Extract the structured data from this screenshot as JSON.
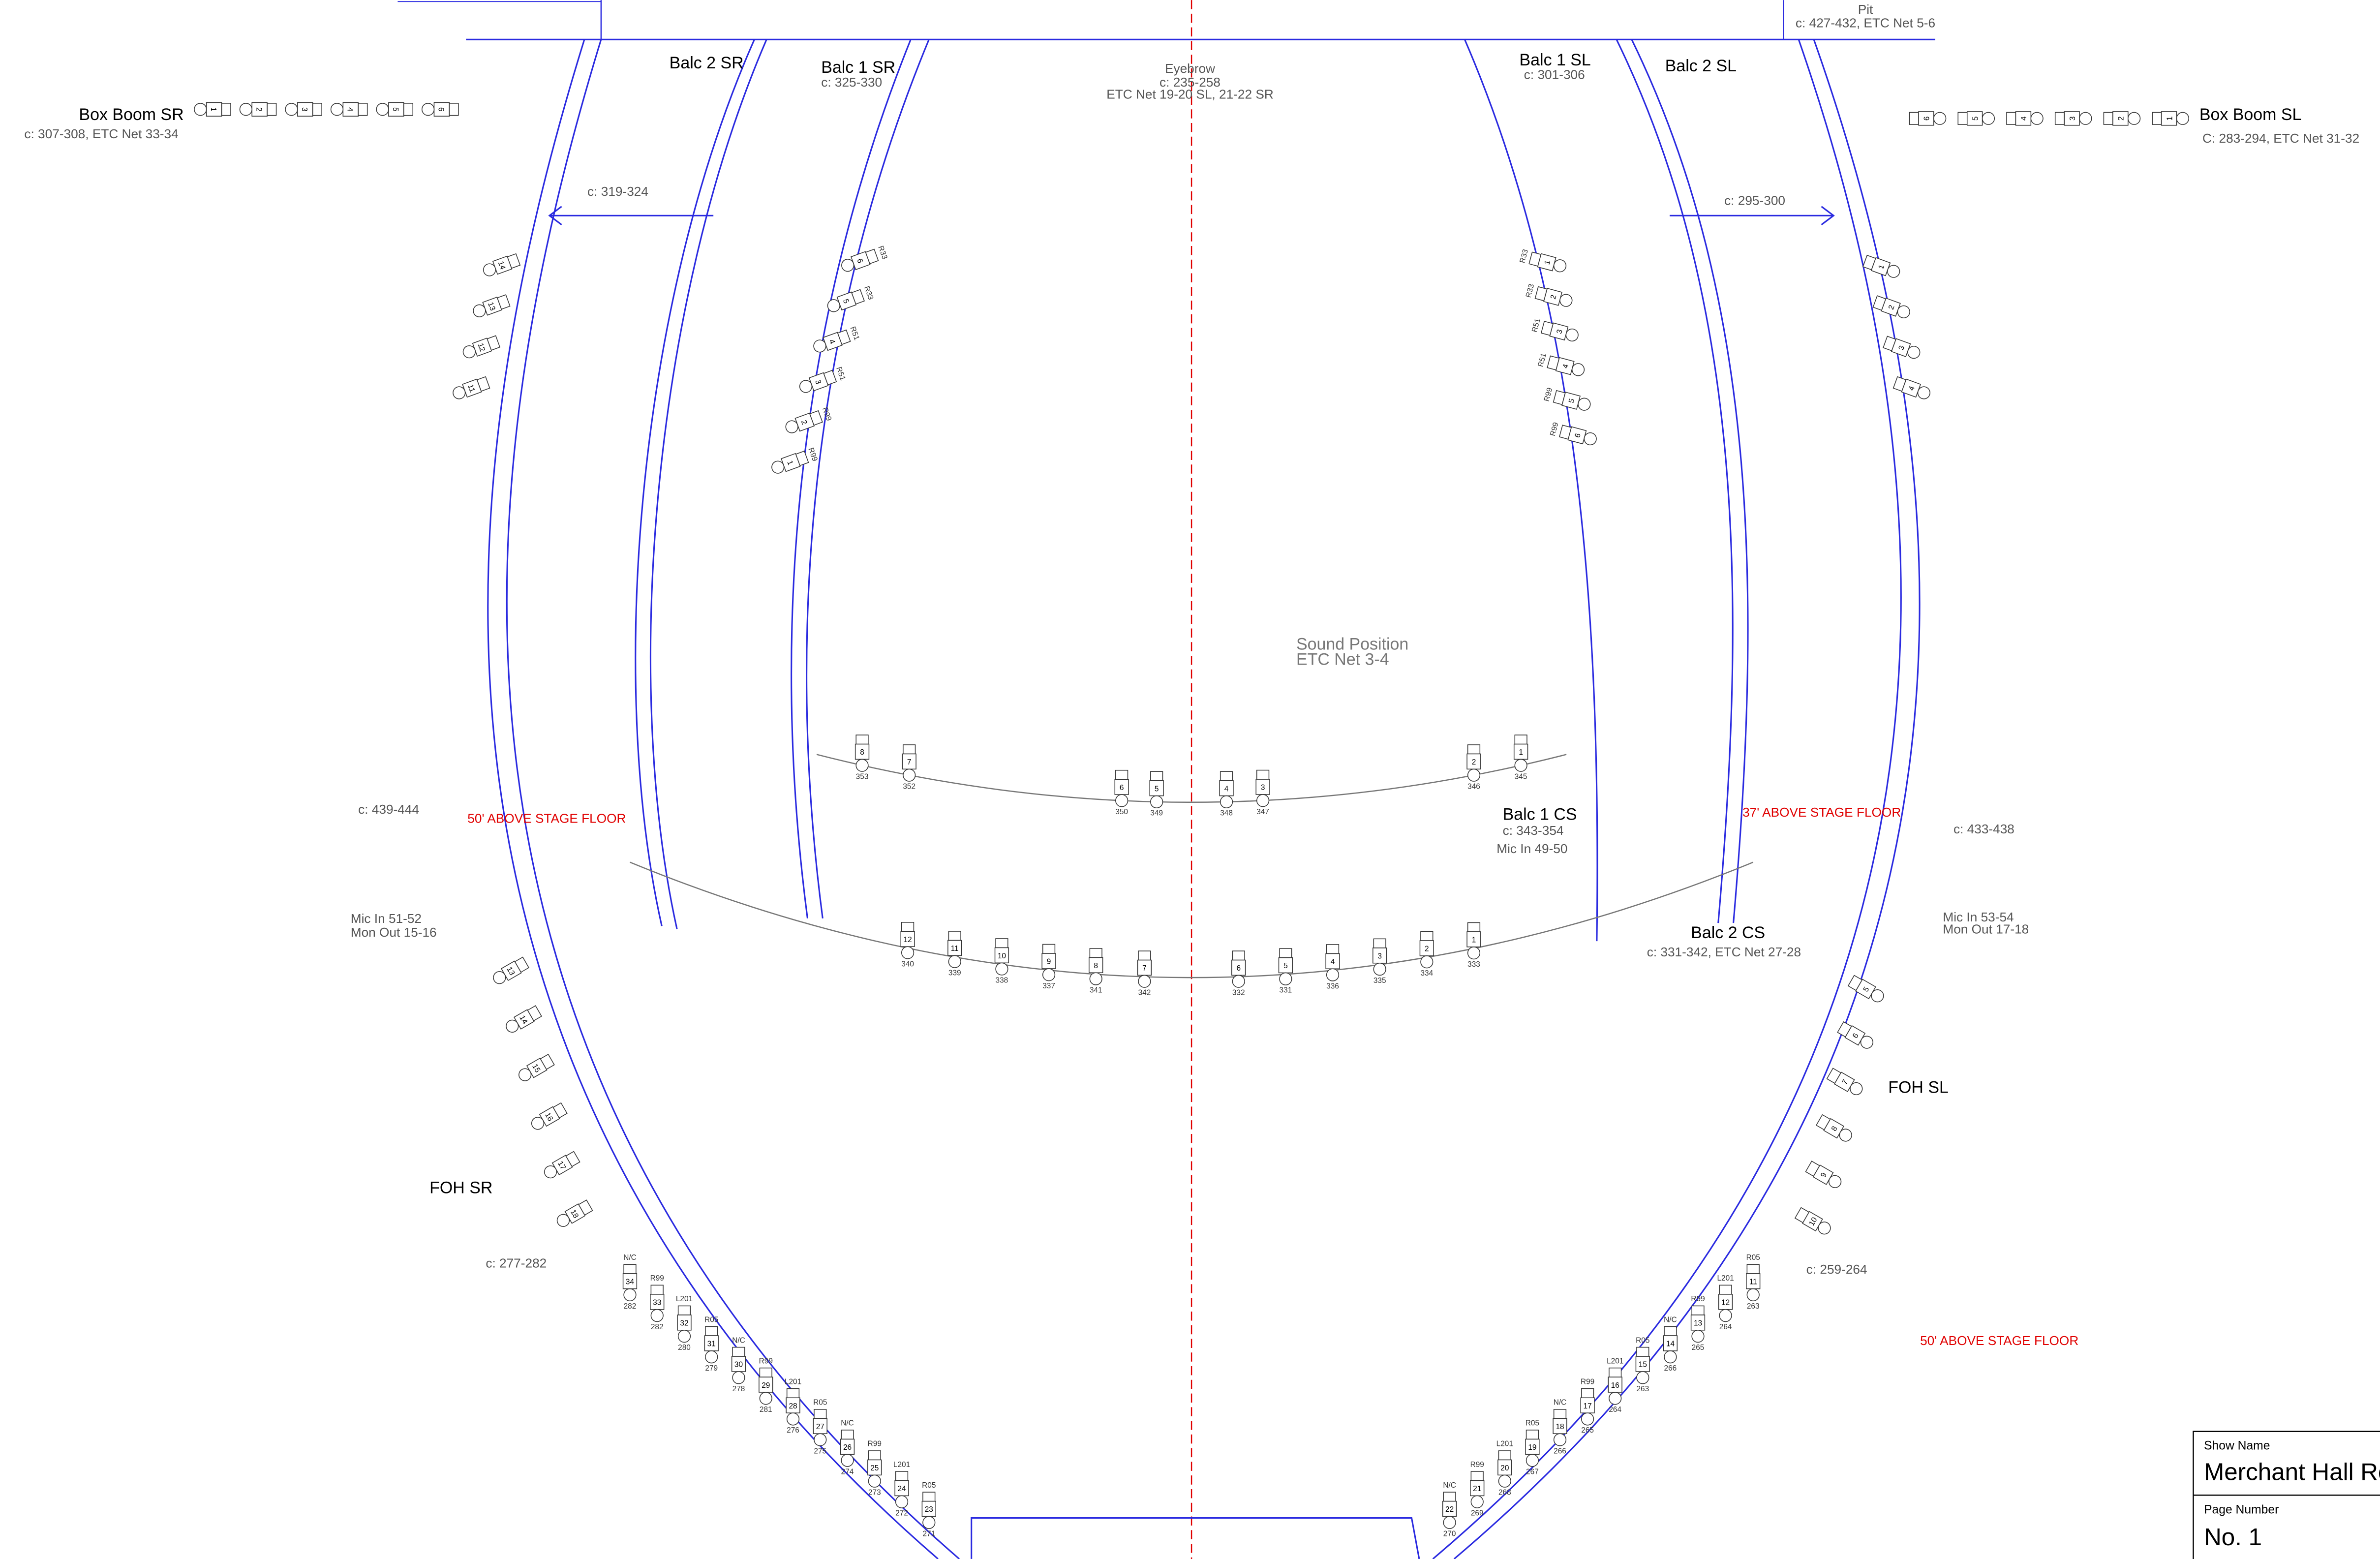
{
  "positions": {
    "pit": {
      "name": "Pit",
      "circuits": "c: 427-432, ETC Net 5-6"
    },
    "eyebrow": {
      "name": "Eyebrow",
      "circuits": "c: 235-258",
      "net": "ETC Net 19-20 SL, 21-22 SR"
    },
    "box_boom_sr": {
      "name": "Box Boom SR",
      "circuits": "c: 307-308, ETC Net 33-34"
    },
    "box_boom_sl": {
      "name": "Box Boom SL",
      "circuits": "C: 283-294, ETC Net 31-32"
    },
    "balc2_sr": {
      "name": "Balc 2 SR",
      "circuits": "c: 319-324"
    },
    "balc1_sr": {
      "name": "Balc 1 SR",
      "circuits": "c: 325-330"
    },
    "balc1_sl": {
      "name": "Balc 1 SL",
      "circuits": "c: 301-306"
    },
    "balc2_sl": {
      "name": "Balc 2 SL",
      "circuits": "c: 295-300"
    },
    "sound": {
      "name": "Sound Position",
      "net": "ETC Net 3-4"
    },
    "balc1_cs": {
      "name": "Balc 1 CS",
      "circuits": "c: 343-354",
      "mic": "Mic In 49-50"
    },
    "balc2_cs": {
      "name": "Balc 2 CS",
      "circuits": "c: 331-342, ETC Net 27-28"
    },
    "foh_sr": {
      "name": "FOH SR",
      "circuits": "c: 277-282",
      "upper": "c: 439-444",
      "mic": "Mic In 51-52",
      "mon": "Mon Out 15-16"
    },
    "foh_sl": {
      "name": "FOH SL",
      "circuits": "c: 259-264",
      "upper": "c: 433-438",
      "mic": "Mic In 53-54",
      "mon": "Mon Out 17-18"
    }
  },
  "notes": [
    "50' ABOVE STAGE FLOOR",
    "37' ABOVE STAGE FLOOR",
    "50' ABOVE STAGE FLOOR"
  ],
  "title_block": {
    "show_label": "Show Name",
    "show": "Merchant Hall Re",
    "page_label": "Page Number",
    "page": "No. 1"
  },
  "balc1_cs": [
    {
      "unit": "8",
      "circuit": "353"
    },
    {
      "unit": "7",
      "circuit": "352"
    },
    {
      "unit": "6",
      "circuit": "350"
    },
    {
      "unit": "5",
      "circuit": "349"
    },
    {
      "unit": "4",
      "circuit": "348"
    },
    {
      "unit": "3",
      "circuit": "347"
    },
    {
      "unit": "2",
      "circuit": "346"
    },
    {
      "unit": "1",
      "circuit": "345"
    }
  ],
  "balc2_cs": [
    {
      "unit": "12",
      "circuit": "340"
    },
    {
      "unit": "11",
      "circuit": "339"
    },
    {
      "unit": "10",
      "circuit": "338"
    },
    {
      "unit": "9",
      "circuit": "337"
    },
    {
      "unit": "8",
      "circuit": "341"
    },
    {
      "unit": "7",
      "circuit": "342"
    },
    {
      "unit": "6",
      "circuit": "332"
    },
    {
      "unit": "5",
      "circuit": "331"
    },
    {
      "unit": "4",
      "circuit": "336"
    },
    {
      "unit": "3",
      "circuit": "335"
    },
    {
      "unit": "2",
      "circuit": "334"
    },
    {
      "unit": "1",
      "circuit": "333"
    }
  ],
  "balc1_sr_units": [
    {
      "unit": "6",
      "color": "R33"
    },
    {
      "unit": "5",
      "color": "R33"
    },
    {
      "unit": "4",
      "color": "R51"
    },
    {
      "unit": "3",
      "color": "R51"
    },
    {
      "unit": "2",
      "color": "R99"
    },
    {
      "unit": "1",
      "color": "R99"
    }
  ],
  "balc1_sl_units": [
    {
      "unit": "1",
      "color": "R33"
    },
    {
      "unit": "2",
      "color": "R33"
    },
    {
      "unit": "3",
      "color": "R51"
    },
    {
      "unit": "4",
      "color": "R51"
    },
    {
      "unit": "5",
      "color": "R99"
    },
    {
      "unit": "6",
      "color": "R99"
    }
  ],
  "balc2_sr_units": [
    {
      "unit": "14"
    },
    {
      "unit": "13"
    },
    {
      "unit": "12"
    },
    {
      "unit": "11"
    }
  ],
  "balc2_sl_units": [
    {
      "unit": "1"
    },
    {
      "unit": "2"
    },
    {
      "unit": "3"
    },
    {
      "unit": "4"
    }
  ],
  "foh_sr_side": [
    {
      "unit": "13"
    },
    {
      "unit": "14"
    },
    {
      "unit": "15"
    },
    {
      "unit": "16"
    },
    {
      "unit": "17"
    },
    {
      "unit": "18"
    }
  ],
  "foh_sl_side": [
    {
      "unit": "5"
    },
    {
      "unit": "6"
    },
    {
      "unit": "7"
    },
    {
      "unit": "8"
    },
    {
      "unit": "9"
    },
    {
      "unit": "10"
    }
  ],
  "foh_sr_front": [
    {
      "unit": "34",
      "color": "N/C",
      "circuit": "282"
    },
    {
      "unit": "33",
      "color": "R99",
      "circuit": "282"
    },
    {
      "unit": "32",
      "color": "L201",
      "circuit": "280"
    },
    {
      "unit": "31",
      "color": "R05",
      "circuit": "279"
    },
    {
      "unit": "30",
      "color": "N/C",
      "circuit": "278"
    },
    {
      "unit": "29",
      "color": "R99",
      "circuit": "281"
    },
    {
      "unit": "28",
      "color": "L201",
      "circuit": "276"
    },
    {
      "unit": "27",
      "color": "R05",
      "circuit": "275"
    },
    {
      "unit": "26",
      "color": "N/C",
      "circuit": "274"
    },
    {
      "unit": "25",
      "color": "R99",
      "circuit": "273"
    },
    {
      "unit": "24",
      "color": "L201",
      "circuit": "272"
    },
    {
      "unit": "23",
      "color": "R05",
      "circuit": "271"
    }
  ],
  "foh_sl_front": [
    {
      "unit": "11",
      "color": "R05",
      "circuit": "263"
    },
    {
      "unit": "12",
      "color": "L201",
      "circuit": "264"
    },
    {
      "unit": "13",
      "color": "R99",
      "circuit": "265"
    },
    {
      "unit": "14",
      "color": "N/C",
      "circuit": "266"
    },
    {
      "unit": "15",
      "color": "R05",
      "circuit": "263"
    },
    {
      "unit": "16",
      "color": "L201",
      "circuit": "264"
    },
    {
      "unit": "17",
      "color": "R99",
      "circuit": "265"
    },
    {
      "unit": "18",
      "color": "N/C",
      "circuit": "266"
    },
    {
      "unit": "19",
      "color": "R05",
      "circuit": "267"
    },
    {
      "unit": "20",
      "color": "L201",
      "circuit": "268"
    },
    {
      "unit": "21",
      "color": "R99",
      "circuit": "269"
    },
    {
      "unit": "22",
      "color": "N/C",
      "circuit": "270"
    }
  ],
  "box_boom_sr_units": [
    {
      "unit": "1"
    },
    {
      "unit": "2"
    },
    {
      "unit": "3"
    },
    {
      "unit": "4"
    },
    {
      "unit": "5"
    },
    {
      "unit": "6"
    }
  ],
  "box_boom_sl_units": [
    {
      "unit": "6"
    },
    {
      "unit": "5"
    },
    {
      "unit": "4"
    },
    {
      "unit": "3"
    },
    {
      "unit": "2"
    },
    {
      "unit": "1"
    }
  ]
}
